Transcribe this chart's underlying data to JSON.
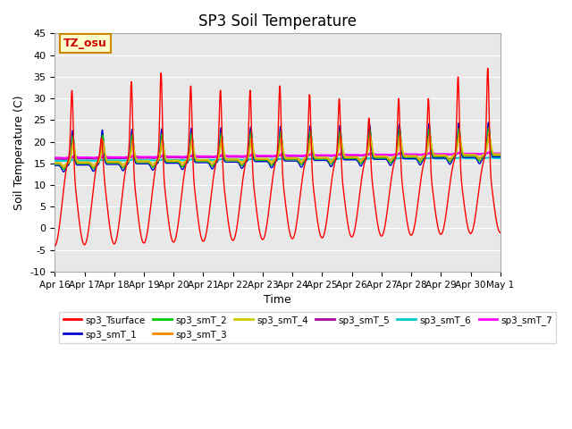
{
  "title": "SP3 Soil Temperature",
  "ylabel": "Soil Temperature (C)",
  "xlabel": "Time",
  "annotation": "TZ_osu",
  "ylim": [
    -10,
    45
  ],
  "background_color": "#e8e8e8",
  "series": {
    "sp3_Tsurface": {
      "color": "#ff0000",
      "lw": 1.0,
      "zorder": 5
    },
    "sp3_smT_1": {
      "color": "#0000cc",
      "lw": 1.0,
      "zorder": 4
    },
    "sp3_smT_2": {
      "color": "#00cc00",
      "lw": 1.0,
      "zorder": 4
    },
    "sp3_smT_3": {
      "color": "#ff8800",
      "lw": 1.0,
      "zorder": 4
    },
    "sp3_smT_4": {
      "color": "#cccc00",
      "lw": 1.0,
      "zorder": 4
    },
    "sp3_smT_5": {
      "color": "#aa00aa",
      "lw": 1.2,
      "zorder": 3
    },
    "sp3_smT_6": {
      "color": "#00cccc",
      "lw": 1.5,
      "zorder": 3
    },
    "sp3_smT_7": {
      "color": "#ff00ff",
      "lw": 1.5,
      "zorder": 3
    }
  },
  "xtick_labels": [
    "Apr 16",
    "Apr 17",
    "Apr 18",
    "Apr 19",
    "Apr 20",
    "Apr 21",
    "Apr 22",
    "Apr 23",
    "Apr 24",
    "Apr 25",
    "Apr 26",
    "Apr 27",
    "Apr 28",
    "Apr 29",
    "Apr 30",
    "May 1"
  ],
  "ytick_values": [
    -10,
    -5,
    0,
    5,
    10,
    15,
    20,
    25,
    30,
    35,
    40,
    45
  ],
  "n_days": 15,
  "pts_per_day": 144
}
